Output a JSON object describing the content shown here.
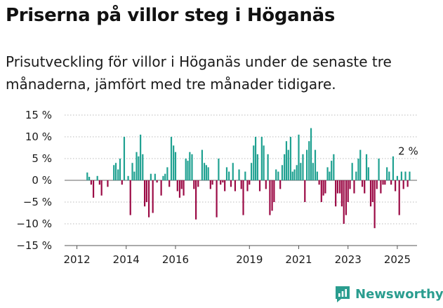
{
  "header": {
    "title": "Priserna på villor steg i Höganäs",
    "subtitle": "Prisutveckling för villor i Höganäs under de senaste tre månaderna, jämfört med tre månader tidigare."
  },
  "brand": {
    "name": "Newsworthy",
    "icon": "newsworthy-logo-icon",
    "color": "#2a9d8f"
  },
  "colors": {
    "positive": "#1fa191",
    "negative": "#9b0a45",
    "gridline": "#bbbbbb",
    "zero_line": "#666666"
  },
  "chart_data": {
    "type": "bar",
    "title": "Priserna på villor steg i Höganäs",
    "xlabel": "",
    "ylabel": "",
    "ylim": [
      -15,
      15
    ],
    "xlim": [
      2011.5,
      2025.8
    ],
    "grid": true,
    "yticks": [
      15,
      10,
      5,
      0,
      -5,
      -10,
      -15
    ],
    "ytick_labels": [
      "15 %",
      "10 %",
      "5 %",
      "0 %",
      "−5 %",
      "−10 %",
      "−15 %"
    ],
    "xticks": [
      2012,
      2014,
      2016,
      2019,
      2021,
      2023,
      2025
    ],
    "xtick_labels": [
      "2012",
      "2014",
      "2016",
      "2019",
      "2021",
      "2023",
      "2025"
    ],
    "annotation": {
      "text": "2 %",
      "x": 2025.5,
      "y": 2
    },
    "x": [
      2012.42,
      2012.5,
      2012.58,
      2012.67,
      2012.75,
      2012.83,
      2012.92,
      2013.0,
      2013.08,
      2013.17,
      2013.25,
      2013.33,
      2013.42,
      2013.5,
      2013.58,
      2013.67,
      2013.75,
      2013.83,
      2013.92,
      2014.0,
      2014.08,
      2014.17,
      2014.25,
      2014.33,
      2014.42,
      2014.5,
      2014.58,
      2014.67,
      2014.75,
      2014.83,
      2014.92,
      2015.0,
      2015.08,
      2015.17,
      2015.25,
      2015.33,
      2015.42,
      2015.5,
      2015.58,
      2015.67,
      2015.75,
      2015.83,
      2015.92,
      2016.0,
      2016.08,
      2016.17,
      2016.25,
      2016.33,
      2016.42,
      2016.5,
      2016.58,
      2016.67,
      2016.75,
      2016.83,
      2016.92,
      2017.0,
      2017.08,
      2017.17,
      2017.25,
      2017.33,
      2017.42,
      2017.5,
      2017.58,
      2017.67,
      2017.75,
      2017.83,
      2017.92,
      2018.0,
      2018.08,
      2018.17,
      2018.25,
      2018.33,
      2018.42,
      2018.5,
      2018.58,
      2018.67,
      2018.75,
      2018.83,
      2018.92,
      2019.0,
      2019.08,
      2019.17,
      2019.25,
      2019.33,
      2019.42,
      2019.5,
      2019.58,
      2019.67,
      2019.75,
      2019.83,
      2019.92,
      2020.0,
      2020.08,
      2020.17,
      2020.25,
      2020.33,
      2020.42,
      2020.5,
      2020.58,
      2020.67,
      2020.75,
      2020.83,
      2020.92,
      2021.0,
      2021.08,
      2021.17,
      2021.25,
      2021.33,
      2021.42,
      2021.5,
      2021.58,
      2021.67,
      2021.75,
      2021.83,
      2021.92,
      2022.0,
      2022.08,
      2022.17,
      2022.25,
      2022.33,
      2022.42,
      2022.5,
      2022.58,
      2022.67,
      2022.75,
      2022.83,
      2022.92,
      2023.0,
      2023.08,
      2023.17,
      2023.25,
      2023.33,
      2023.42,
      2023.5,
      2023.58,
      2023.67,
      2023.75,
      2023.83,
      2023.92,
      2024.0,
      2024.08,
      2024.17,
      2024.25,
      2024.33,
      2024.42,
      2024.5,
      2024.58,
      2024.67,
      2024.75,
      2024.83,
      2024.92,
      2025.0,
      2025.08,
      2025.17,
      2025.25,
      2025.33,
      2025.42,
      2025.5
    ],
    "values": [
      1.8,
      0.8,
      -1,
      -4,
      0,
      1,
      -1,
      -3.5,
      0,
      0,
      -1.5,
      0,
      0,
      3.5,
      4,
      2.5,
      5,
      -1,
      10,
      0,
      1,
      -8,
      4,
      2,
      6.5,
      5.5,
      10.5,
      6,
      -6,
      -5,
      -8.5,
      1.5,
      -7.5,
      1.5,
      -0.5,
      0,
      -3.5,
      1,
      1.5,
      3,
      -1.5,
      10,
      8,
      6.5,
      -2.5,
      -4,
      -2,
      -3.5,
      5,
      4.5,
      6.5,
      6,
      -2,
      -9,
      -1.5,
      0,
      7,
      4,
      3.5,
      3,
      -2,
      -1,
      0,
      -8.5,
      5,
      -1,
      -0.5,
      -2.5,
      3,
      2,
      -1.5,
      4,
      -2.5,
      0,
      2.5,
      -2,
      -8,
      2,
      -2.5,
      -1,
      4,
      8,
      10,
      6,
      -2.5,
      10,
      8,
      -2,
      6,
      -8,
      -7,
      -5,
      2.5,
      2,
      -2,
      3.5,
      6,
      9,
      7,
      10,
      2,
      2.5,
      3.5,
      10.5,
      4,
      6,
      -5,
      7,
      9,
      12,
      4,
      7,
      2,
      -1,
      -5,
      -3.5,
      -3,
      3,
      2,
      4.5,
      6,
      -6,
      -3,
      -3,
      -6,
      -10,
      -8,
      -5,
      -2,
      4,
      -3,
      2,
      5,
      7,
      -1.5,
      -3,
      6,
      3,
      -6,
      -5,
      -11,
      -2,
      5,
      -3,
      -1,
      -1,
      3,
      2,
      -1,
      5.5,
      -2.5,
      1,
      -8,
      2,
      -2,
      2,
      -1.5,
      2
    ]
  }
}
